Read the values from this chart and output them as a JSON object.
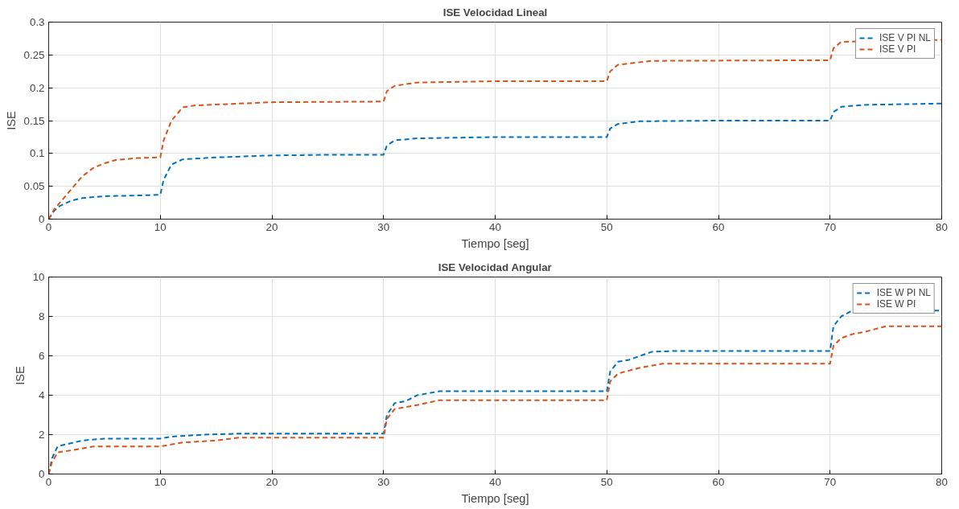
{
  "chart_data": [
    {
      "type": "line",
      "title": "ISE Velocidad Lineal",
      "xlabel": "Tiempo [seg]",
      "ylabel": "ISE",
      "xlim": [
        0,
        80
      ],
      "ylim": [
        0,
        0.3
      ],
      "xticks": [
        0,
        10,
        20,
        30,
        40,
        50,
        60,
        70,
        80
      ],
      "yticks": [
        0,
        0.05,
        0.1,
        0.15,
        0.2,
        0.25,
        0.3
      ],
      "grid": true,
      "legend": "top right",
      "line_style": "dashed",
      "series": [
        {
          "name": "ISE V PI NL",
          "color": "#0072bd",
          "x": [
            0,
            0.5,
            1,
            2,
            3,
            5,
            8,
            10,
            10.3,
            11,
            12,
            15,
            20,
            25,
            30,
            30.3,
            31,
            33,
            40,
            50,
            50.3,
            51,
            53,
            60,
            70,
            70.3,
            71,
            73,
            80
          ],
          "values": [
            0,
            0.013,
            0.02,
            0.028,
            0.032,
            0.035,
            0.036,
            0.037,
            0.06,
            0.083,
            0.091,
            0.094,
            0.097,
            0.098,
            0.098,
            0.112,
            0.12,
            0.123,
            0.125,
            0.125,
            0.138,
            0.145,
            0.149,
            0.15,
            0.15,
            0.163,
            0.171,
            0.174,
            0.176
          ]
        },
        {
          "name": "ISE V PI",
          "color": "#d95319",
          "x": [
            0,
            0.5,
            1,
            2,
            3,
            4,
            5,
            6,
            8,
            10,
            10.3,
            11,
            12,
            13,
            20,
            30,
            30.3,
            31,
            33,
            40,
            50,
            50.3,
            51,
            54,
            70,
            70.3,
            71,
            80
          ],
          "values": [
            0,
            0.015,
            0.025,
            0.045,
            0.065,
            0.078,
            0.085,
            0.09,
            0.093,
            0.094,
            0.12,
            0.15,
            0.17,
            0.173,
            0.178,
            0.179,
            0.195,
            0.203,
            0.208,
            0.21,
            0.21,
            0.225,
            0.235,
            0.241,
            0.242,
            0.26,
            0.27,
            0.273
          ]
        }
      ]
    },
    {
      "type": "line",
      "title": "ISE Velocidad Angular",
      "xlabel": "Tiempo [seg]",
      "ylabel": "ISE",
      "xlim": [
        0,
        80
      ],
      "ylim": [
        0,
        10
      ],
      "xticks": [
        0,
        10,
        20,
        30,
        40,
        50,
        60,
        70,
        80
      ],
      "yticks": [
        0,
        2,
        4,
        6,
        8,
        10
      ],
      "grid": true,
      "legend": "top right",
      "line_style": "dashed",
      "series": [
        {
          "name": "ISE W PI NL",
          "color": "#0072bd",
          "x": [
            0,
            0.3,
            0.8,
            1.5,
            3,
            5,
            10,
            11,
            14,
            17,
            30,
            30.3,
            31,
            32,
            33,
            35,
            50,
            50.3,
            51,
            52,
            54,
            56,
            70,
            70.3,
            71,
            72,
            80
          ],
          "values": [
            0,
            0.8,
            1.4,
            1.5,
            1.7,
            1.8,
            1.8,
            1.9,
            2.0,
            2.05,
            2.05,
            3.0,
            3.6,
            3.7,
            4.0,
            4.2,
            4.2,
            5.2,
            5.7,
            5.8,
            6.2,
            6.25,
            6.25,
            7.5,
            8.0,
            8.3,
            8.3
          ]
        },
        {
          "name": "ISE W PI",
          "color": "#d95319",
          "x": [
            0,
            0.3,
            0.8,
            2,
            4,
            10,
            12,
            15,
            17,
            30,
            30.3,
            31,
            32,
            33,
            35,
            50,
            50.3,
            51,
            52,
            53,
            55,
            70,
            70.3,
            71,
            72,
            73,
            75,
            80
          ],
          "values": [
            0,
            0.6,
            1.1,
            1.2,
            1.4,
            1.4,
            1.6,
            1.7,
            1.85,
            1.85,
            2.8,
            3.3,
            3.4,
            3.5,
            3.75,
            3.75,
            4.7,
            5.1,
            5.25,
            5.4,
            5.6,
            5.6,
            6.5,
            6.9,
            7.1,
            7.2,
            7.5,
            7.5
          ]
        }
      ]
    }
  ]
}
